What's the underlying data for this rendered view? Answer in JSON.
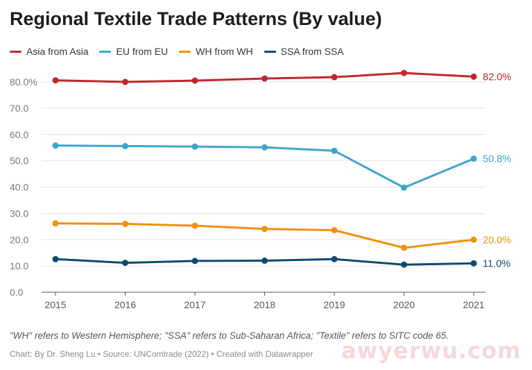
{
  "title": "Regional Textile Trade Patterns (By value)",
  "note": "\"WH\" refers to Western Hemisphere; \"SSA\" refers to Sub-Saharan Africa; \"Textile\" refers to SITC code 65.",
  "credit": "Chart: By Dr. Sheng Lu • Source: UNComtrade (2022) • Created with Datawrapper",
  "watermark": "awyerwu.com",
  "chart_data": {
    "type": "line",
    "title": "Regional Textile Trade Patterns (By value)",
    "x": [
      "2015",
      "2016",
      "2017",
      "2018",
      "2019",
      "2020",
      "2021"
    ],
    "ylim": [
      0,
      80
    ],
    "yticks": [
      "0.0",
      "10.0",
      "20.0",
      "30.0",
      "40.0",
      "50.0",
      "60.0",
      "70.0",
      "80.0%"
    ],
    "grid": true,
    "legend": "top-left",
    "series": [
      {
        "name": "Asia from Asia",
        "color": "#c0272d",
        "values": [
          80.6,
          80.0,
          80.5,
          81.3,
          81.8,
          83.4,
          82.0
        ],
        "end_label": "82.0%"
      },
      {
        "name": "EU from EU",
        "color": "#3da5cc",
        "values": [
          55.8,
          55.6,
          55.4,
          55.1,
          53.8,
          39.8,
          50.8
        ],
        "end_label": "50.8%"
      },
      {
        "name": "WH from WH",
        "color": "#f0900e",
        "values": [
          26.2,
          26.0,
          25.3,
          24.1,
          23.6,
          16.9,
          20.0
        ],
        "end_label": "20.0%"
      },
      {
        "name": "SSA from SSA",
        "color": "#0c4a6e",
        "values": [
          12.6,
          11.2,
          11.9,
          12.0,
          12.6,
          10.5,
          11.0
        ],
        "end_label": "11.0%"
      }
    ]
  }
}
